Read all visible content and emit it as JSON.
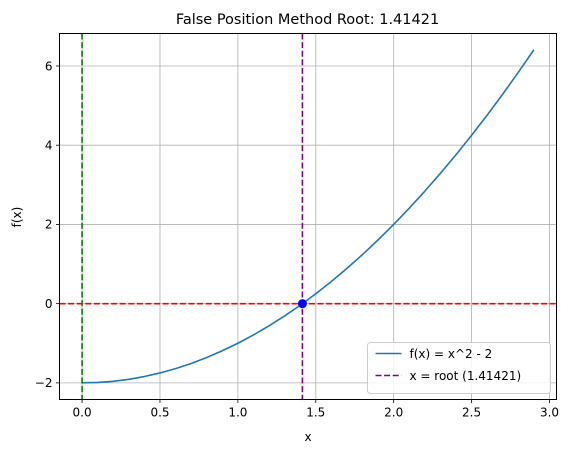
{
  "chart_data": {
    "type": "line",
    "title": "False Position Method Root: 1.41421",
    "xlabel": "x",
    "ylabel": "f(x)",
    "xlim": [
      -0.145,
      3.045
    ],
    "ylim": [
      -2.42,
      6.82
    ],
    "xticks": [
      0.0,
      0.5,
      1.0,
      1.5,
      2.0,
      2.5,
      3.0
    ],
    "xtick_labels": [
      "0.0",
      "0.5",
      "1.0",
      "1.5",
      "2.0",
      "2.5",
      "3.0"
    ],
    "yticks": [
      -2,
      0,
      2,
      4,
      6
    ],
    "ytick_labels": [
      "−2",
      "0",
      "2",
      "4",
      "6"
    ],
    "grid": true,
    "legend_position": "lower-right",
    "series": [
      {
        "name": "f(x) = x^2 - 2",
        "color": "#1f77b4",
        "style": "solid",
        "x": [
          0.0,
          0.1,
          0.2,
          0.3,
          0.4,
          0.5,
          0.6,
          0.7,
          0.8,
          0.9,
          1.0,
          1.1,
          1.2,
          1.3,
          1.4,
          1.5,
          1.6,
          1.7,
          1.8,
          1.9,
          2.0,
          2.1,
          2.2,
          2.3,
          2.4,
          2.5,
          2.6,
          2.7,
          2.8,
          2.9
        ],
        "y": [
          -2.0,
          -1.99,
          -1.96,
          -1.91,
          -1.84,
          -1.75,
          -1.64,
          -1.51,
          -1.36,
          -1.19,
          -1.0,
          -0.79,
          -0.56,
          -0.31,
          -0.04,
          0.25,
          0.56,
          0.89,
          1.24,
          1.61,
          2.0,
          2.41,
          2.84,
          3.29,
          3.76,
          4.25,
          4.76,
          5.29,
          5.84,
          6.41
        ]
      }
    ],
    "reference_lines": [
      {
        "orientation": "vertical",
        "value": 1.41421,
        "name": "x = root (1.41421)",
        "color": "#800080",
        "style": "dashed",
        "in_legend": true
      },
      {
        "orientation": "vertical",
        "value": 0.0,
        "color": "#008000",
        "style": "dashed",
        "in_legend": false
      },
      {
        "orientation": "horizontal",
        "value": 0.0,
        "color": "#ff0000",
        "style": "dashed",
        "in_legend": false
      }
    ],
    "markers": [
      {
        "x": 1.41421,
        "y": 0.0,
        "color": "#0000ff"
      }
    ]
  }
}
